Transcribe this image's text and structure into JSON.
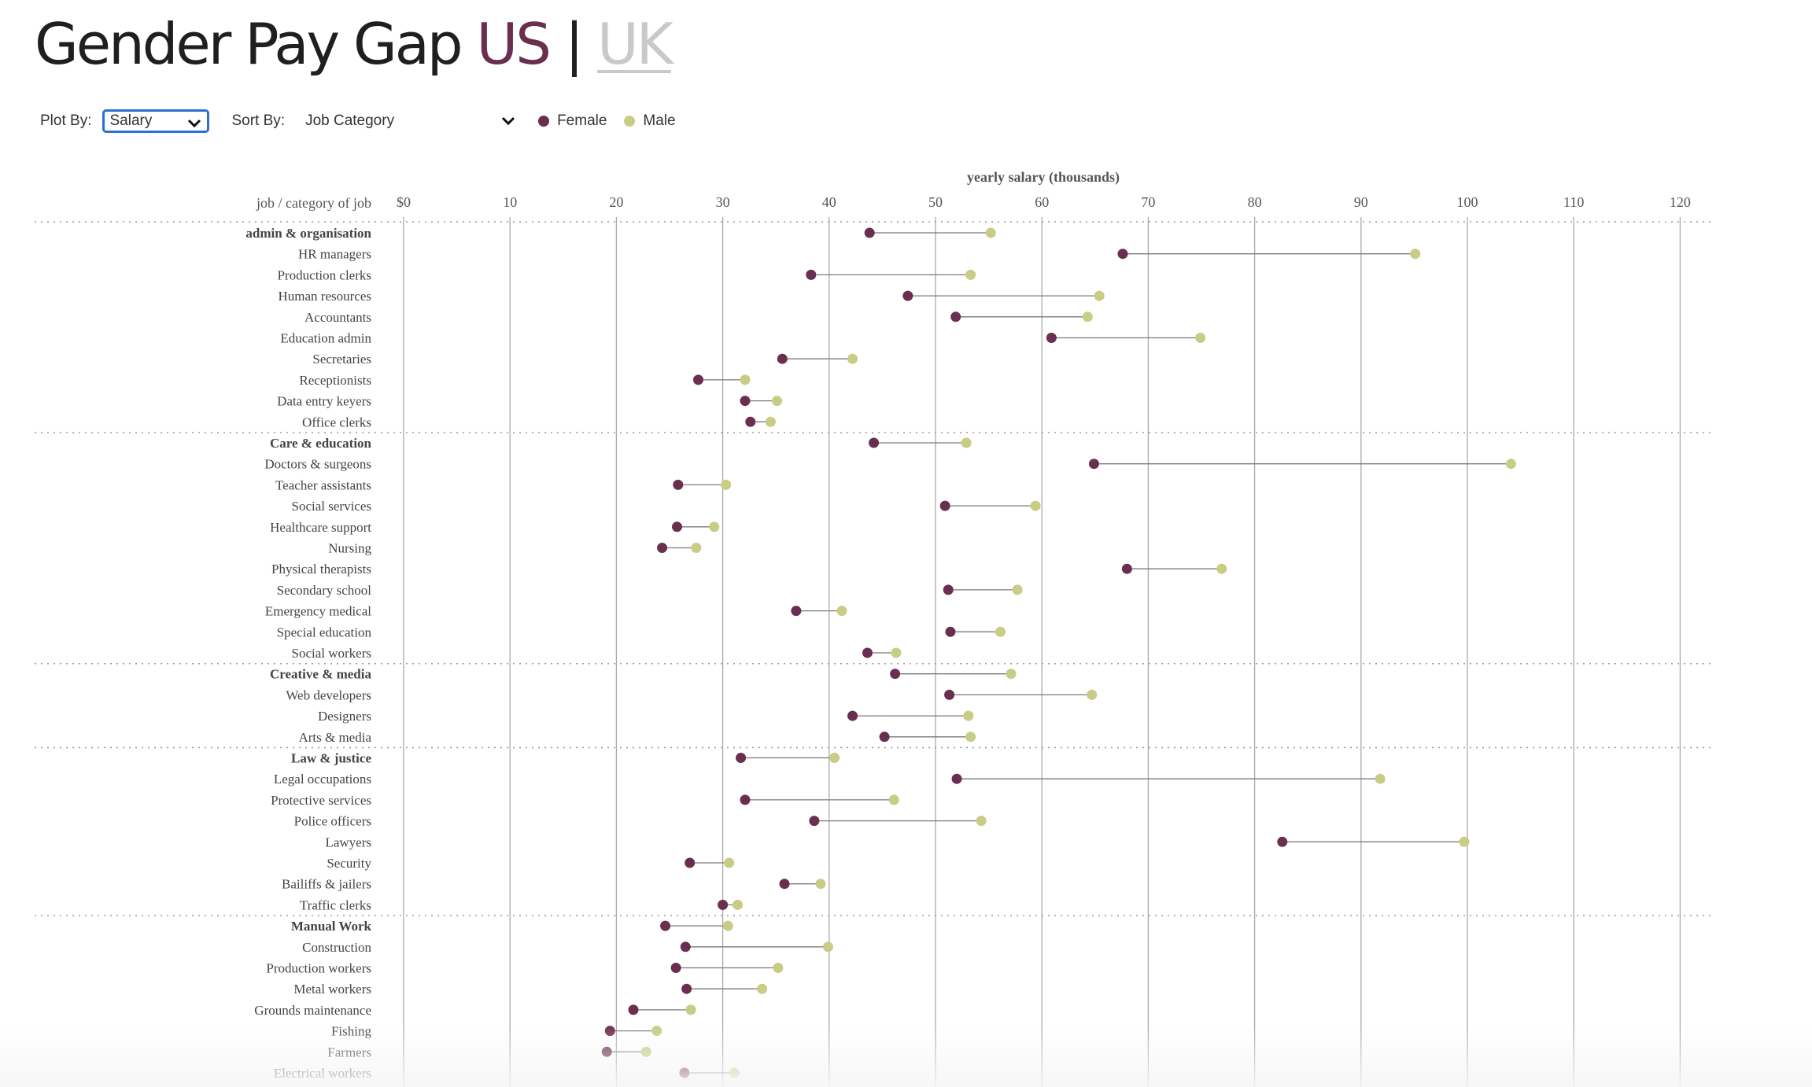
{
  "title": {
    "main": "Gender Pay Gap",
    "us": "US",
    "sep": "|",
    "uk": "UK"
  },
  "controls": {
    "plot_label": "Plot By:",
    "plot_value": "Salary",
    "sort_label": "Sort By:",
    "sort_value": "Job Category"
  },
  "legend": {
    "female": {
      "label": "Female",
      "color": "#6a2e4f"
    },
    "male": {
      "label": "Male",
      "color": "#c8cc85"
    }
  },
  "chart_data": {
    "type": "dumbbell",
    "title": "yearly salary (thousands)",
    "ylabel": "job / category of job",
    "xlim": [
      0,
      125
    ],
    "xticks": [
      "$0",
      "10",
      "20",
      "30",
      "40",
      "50",
      "60",
      "70",
      "80",
      "90",
      "100",
      "110",
      "120"
    ],
    "grid": true,
    "series": [
      {
        "name": "Female",
        "color": "#6a2e4f"
      },
      {
        "name": "Male",
        "color": "#c8cc85"
      }
    ],
    "rows": [
      {
        "label": "admin & organisation",
        "category": true,
        "female": 43.8,
        "male": 55.2
      },
      {
        "label": "HR managers",
        "female": 67.6,
        "male": 95.1
      },
      {
        "label": "Production clerks",
        "female": 38.3,
        "male": 53.3
      },
      {
        "label": "Human resources",
        "female": 47.4,
        "male": 65.4
      },
      {
        "label": "Accountants",
        "female": 51.9,
        "male": 64.3
      },
      {
        "label": "Education admin",
        "female": 60.9,
        "male": 74.9
      },
      {
        "label": "Secretaries",
        "female": 35.6,
        "male": 42.2
      },
      {
        "label": "Receptionists",
        "female": 27.7,
        "male": 32.1
      },
      {
        "label": "Data entry keyers",
        "female": 32.1,
        "male": 35.1
      },
      {
        "label": "Office clerks",
        "female": 32.6,
        "male": 34.5
      },
      {
        "label": "Care & education",
        "category": true,
        "female": 44.2,
        "male": 52.9
      },
      {
        "label": "Doctors & surgeons",
        "female": 64.9,
        "male": 104.1
      },
      {
        "label": "Teacher assistants",
        "female": 25.8,
        "male": 30.3
      },
      {
        "label": "Social services",
        "female": 50.9,
        "male": 59.4
      },
      {
        "label": "Healthcare support",
        "female": 25.7,
        "male": 29.2
      },
      {
        "label": "Nursing",
        "female": 24.3,
        "male": 27.5
      },
      {
        "label": "Physical therapists",
        "female": 68.0,
        "male": 76.9
      },
      {
        "label": "Secondary school",
        "female": 51.2,
        "male": 57.7
      },
      {
        "label": "Emergency medical",
        "female": 36.9,
        "male": 41.2
      },
      {
        "label": "Special education",
        "female": 51.4,
        "male": 56.1
      },
      {
        "label": "Social workers",
        "female": 43.6,
        "male": 46.3
      },
      {
        "label": "Creative & media",
        "category": true,
        "female": 46.2,
        "male": 57.1
      },
      {
        "label": "Web developers",
        "female": 51.3,
        "male": 64.7
      },
      {
        "label": "Designers",
        "female": 42.2,
        "male": 53.1
      },
      {
        "label": "Arts & media",
        "female": 45.2,
        "male": 53.3
      },
      {
        "label": "Law & justice",
        "category": true,
        "female": 31.7,
        "male": 40.5
      },
      {
        "label": "Legal occupations",
        "female": 52.0,
        "male": 91.8
      },
      {
        "label": "Protective services",
        "female": 32.1,
        "male": 46.1
      },
      {
        "label": "Police officers",
        "female": 38.6,
        "male": 54.3
      },
      {
        "label": "Lawyers",
        "female": 82.6,
        "male": 99.7
      },
      {
        "label": "Security",
        "female": 26.9,
        "male": 30.6
      },
      {
        "label": "Bailiffs & jailers",
        "female": 35.8,
        "male": 39.2
      },
      {
        "label": "Traffic clerks",
        "female": 30.0,
        "male": 31.4
      },
      {
        "label": "Manual Work",
        "category": true,
        "female": 24.6,
        "male": 30.5
      },
      {
        "label": "Construction",
        "female": 26.5,
        "male": 39.9
      },
      {
        "label": "Production workers",
        "female": 25.6,
        "male": 35.2
      },
      {
        "label": "Metal workers",
        "female": 26.6,
        "male": 33.7
      },
      {
        "label": "Grounds maintenance",
        "female": 21.6,
        "male": 27.0
      },
      {
        "label": "Fishing",
        "female": 19.4,
        "male": 23.8
      },
      {
        "label": "Farmers",
        "female": 19.1,
        "male": 22.8
      },
      {
        "label": "Electrical workers",
        "female": 26.4,
        "male": 31.1
      }
    ]
  }
}
